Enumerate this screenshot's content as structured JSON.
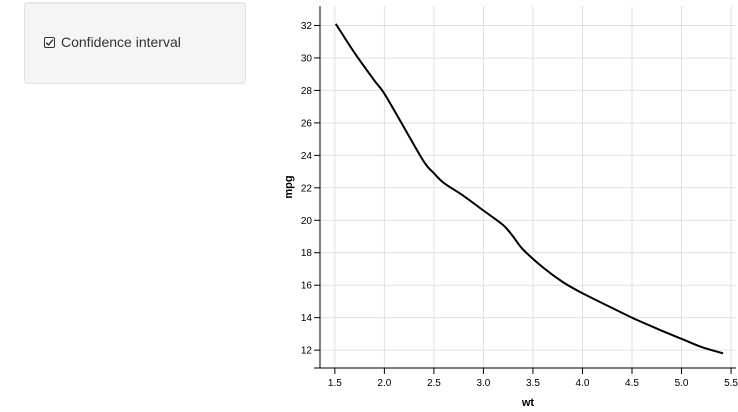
{
  "sidebar": {
    "checkbox": {
      "label": "Confidence interval",
      "checked": true
    }
  },
  "chart_data": {
    "type": "line",
    "xlabel": "wt",
    "ylabel": "mpg",
    "xlim": [
      1.35,
      5.55
    ],
    "ylim": [
      10.9,
      33.2
    ],
    "grid": true,
    "x_ticks": [
      "1.5",
      "2.0",
      "2.5",
      "3.0",
      "3.5",
      "4.0",
      "4.5",
      "5.0",
      "5.5"
    ],
    "y_ticks": [
      "12",
      "14",
      "16",
      "18",
      "20",
      "22",
      "24",
      "26",
      "28",
      "30",
      "32"
    ],
    "series": [
      {
        "color": "#000000",
        "x": [
          1.51,
          1.7,
          1.9,
          2.0,
          2.2,
          2.4,
          2.5,
          2.6,
          2.8,
          3.0,
          3.2,
          3.3,
          3.4,
          3.6,
          3.8,
          4.0,
          4.2,
          4.5,
          4.8,
          5.0,
          5.2,
          5.42
        ],
        "y": [
          32.1,
          30.3,
          28.6,
          27.8,
          25.7,
          23.6,
          22.9,
          22.3,
          21.5,
          20.6,
          19.7,
          19.0,
          18.2,
          17.1,
          16.2,
          15.5,
          14.9,
          14.0,
          13.2,
          12.7,
          12.2,
          11.8
        ]
      }
    ]
  }
}
